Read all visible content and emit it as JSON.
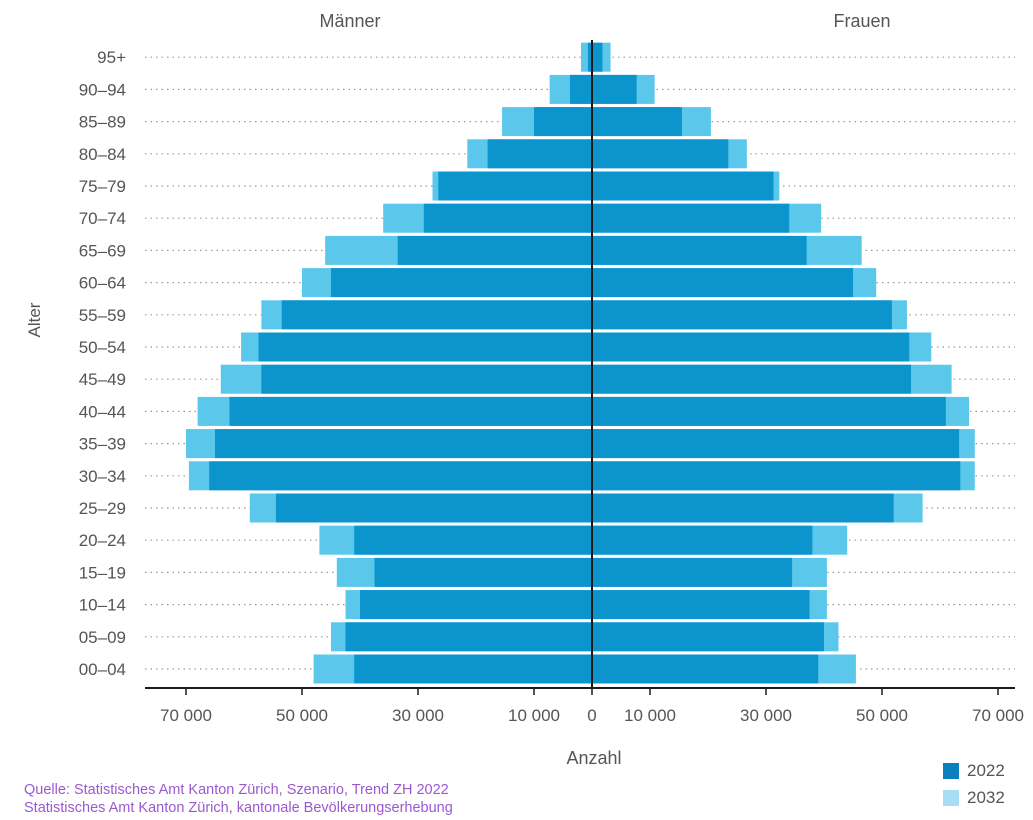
{
  "chart_data": {
    "type": "bar",
    "orientation": "horizontal",
    "subtype": "population-pyramid",
    "left_label": "Männer",
    "right_label": "Frauen",
    "ylabel": "Alter",
    "xlabel": "Anzahl",
    "categories": [
      "00–04",
      "05–09",
      "10–14",
      "15–19",
      "20–24",
      "25–29",
      "30–34",
      "35–39",
      "40–44",
      "45–49",
      "50–54",
      "55–59",
      "60–64",
      "65–69",
      "70–74",
      "75–79",
      "80–84",
      "85–89",
      "90–94",
      "95+"
    ],
    "x_ticks": [
      "70 000",
      "50 000",
      "30 000",
      "10 000",
      "0",
      "10 000",
      "30 000",
      "50 000",
      "70 000"
    ],
    "x_tick_values": [
      -70000,
      -50000,
      -30000,
      -10000,
      0,
      10000,
      30000,
      50000,
      70000
    ],
    "xlim": [
      -78000,
      78000
    ],
    "grid": "dotted horizontal",
    "legend_position": "bottom-right",
    "series": [
      {
        "name": "2022",
        "color": "#0b95cc",
        "men": [
          41000,
          42500,
          40000,
          37500,
          41000,
          54500,
          66000,
          65000,
          62500,
          57000,
          57500,
          53500,
          45000,
          33500,
          29000,
          26500,
          18000,
          10000,
          3800,
          700
        ],
        "women": [
          39000,
          40000,
          37500,
          34500,
          38000,
          52000,
          63500,
          63300,
          61000,
          55000,
          54700,
          51700,
          45000,
          37000,
          34000,
          31300,
          23500,
          15500,
          7700,
          1800
        ]
      },
      {
        "name": "2032",
        "color": "#5bc7ea",
        "men": [
          48000,
          45000,
          42500,
          44000,
          47000,
          59000,
          69500,
          70000,
          68000,
          64000,
          60500,
          57000,
          50000,
          46000,
          36000,
          27500,
          21500,
          15500,
          7300,
          1900
        ],
        "women": [
          45500,
          42500,
          40500,
          40500,
          44000,
          57000,
          66000,
          66000,
          65000,
          62000,
          58500,
          54300,
          49000,
          46500,
          39500,
          32300,
          26700,
          20500,
          10800,
          3200
        ]
      }
    ],
    "overlap_color": "#0782bf"
  },
  "source": {
    "line1": "Quelle: Statistisches Amt Kanton Zürich, Szenario, Trend ZH 2022",
    "line2": "Statistisches Amt Kanton Zürich, kantonale Bevölkerungserhebung"
  },
  "legend": {
    "item1": "2022",
    "item2": "2032",
    "color1": "#0b7fbd",
    "color2": "#a7dcf2"
  }
}
